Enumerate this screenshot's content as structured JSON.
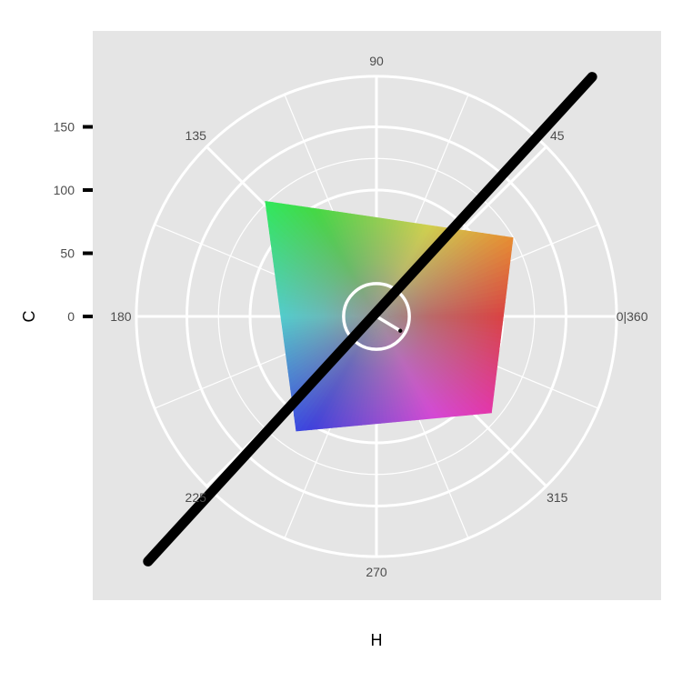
{
  "chart_data": {
    "type": "polar-scatter",
    "xlabel": "H",
    "ylabel": "C",
    "theta_axis": {
      "label": "H",
      "direction": "counterclockwise",
      "zero_at": "right",
      "tick_labels": [
        "0|360",
        "45",
        "90",
        "135",
        "180",
        "225",
        "270",
        "315"
      ],
      "tick_values": [
        0,
        45,
        90,
        135,
        180,
        225,
        270,
        315
      ]
    },
    "radial_axis": {
      "label": "C",
      "ticks": [
        0,
        50,
        100,
        150
      ],
      "tick_labels": [
        "0",
        "50",
        "100",
        "150"
      ],
      "range": [
        0,
        190
      ]
    },
    "series": [
      {
        "kind": "color-gamut-fill",
        "vertices": [
          {
            "h": 134,
            "c": 127
          },
          {
            "h": 30,
            "c": 125
          },
          {
            "h": 320,
            "c": 119
          },
          {
            "h": 235,
            "c": 111
          }
        ]
      },
      {
        "kind": "line",
        "color": "#000000",
        "points": [
          {
            "h": 48,
            "c": 255
          },
          {
            "h": 227,
            "c": 265
          }
        ]
      },
      {
        "kind": "circle",
        "color": "#ffffff",
        "c": 26
      },
      {
        "kind": "segment",
        "color": "#ffffff",
        "points": [
          {
            "h": 0,
            "c": 0
          },
          {
            "h": 329,
            "c": 22
          }
        ]
      }
    ],
    "grid": true,
    "background": "#e5e5e5"
  },
  "colors": {
    "panel_background": "#e5e5e5",
    "grid": "#ffffff",
    "line": "#000000"
  }
}
